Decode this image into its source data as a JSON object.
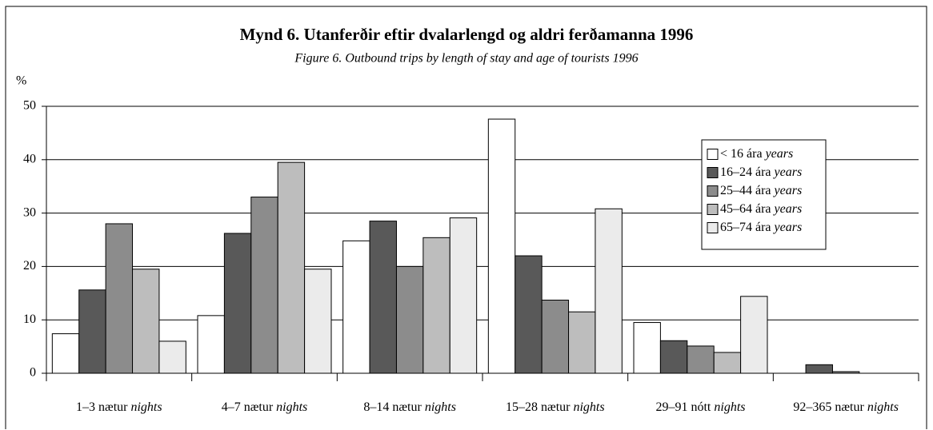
{
  "chart_data": {
    "type": "bar",
    "title": "Mynd 6. Utanferðir eftir dvalarlengd og aldri ferðamanna 1996",
    "subtitle": "Figure 6.  Outbound trips by length of stay and age of tourists 1996",
    "y_label": "%",
    "categories": [
      "1–3 nætur",
      "4–7 nætur",
      "8–14 nætur",
      "15–28 nætur",
      "29–91 nótt",
      "92–365 nætur"
    ],
    "category_unit": "nights",
    "legend_unit": "years",
    "series": [
      {
        "name": "< 16 ára",
        "color": "#ffffff",
        "values": [
          7.4,
          10.8,
          24.8,
          47.6,
          9.5,
          0
        ]
      },
      {
        "name": "16–24 ára",
        "color": "#595959",
        "values": [
          15.6,
          26.2,
          28.5,
          22,
          6.1,
          1.6
        ]
      },
      {
        "name": "25–44 ára",
        "color": "#8c8c8c",
        "values": [
          28,
          33,
          20,
          13.7,
          5.1,
          0.3
        ]
      },
      {
        "name": "45–64 ára",
        "color": "#bdbdbd",
        "values": [
          19.5,
          39.5,
          25.4,
          11.5,
          3.9,
          0
        ]
      },
      {
        "name": "65–74 ára",
        "color": "#ebebeb",
        "values": [
          6,
          19.5,
          29.1,
          30.8,
          14.4,
          0
        ]
      }
    ],
    "ylim": [
      0,
      50
    ],
    "yticks": [
      0,
      10,
      20,
      30,
      40,
      50
    ],
    "grid": true,
    "legend": "upper right"
  }
}
